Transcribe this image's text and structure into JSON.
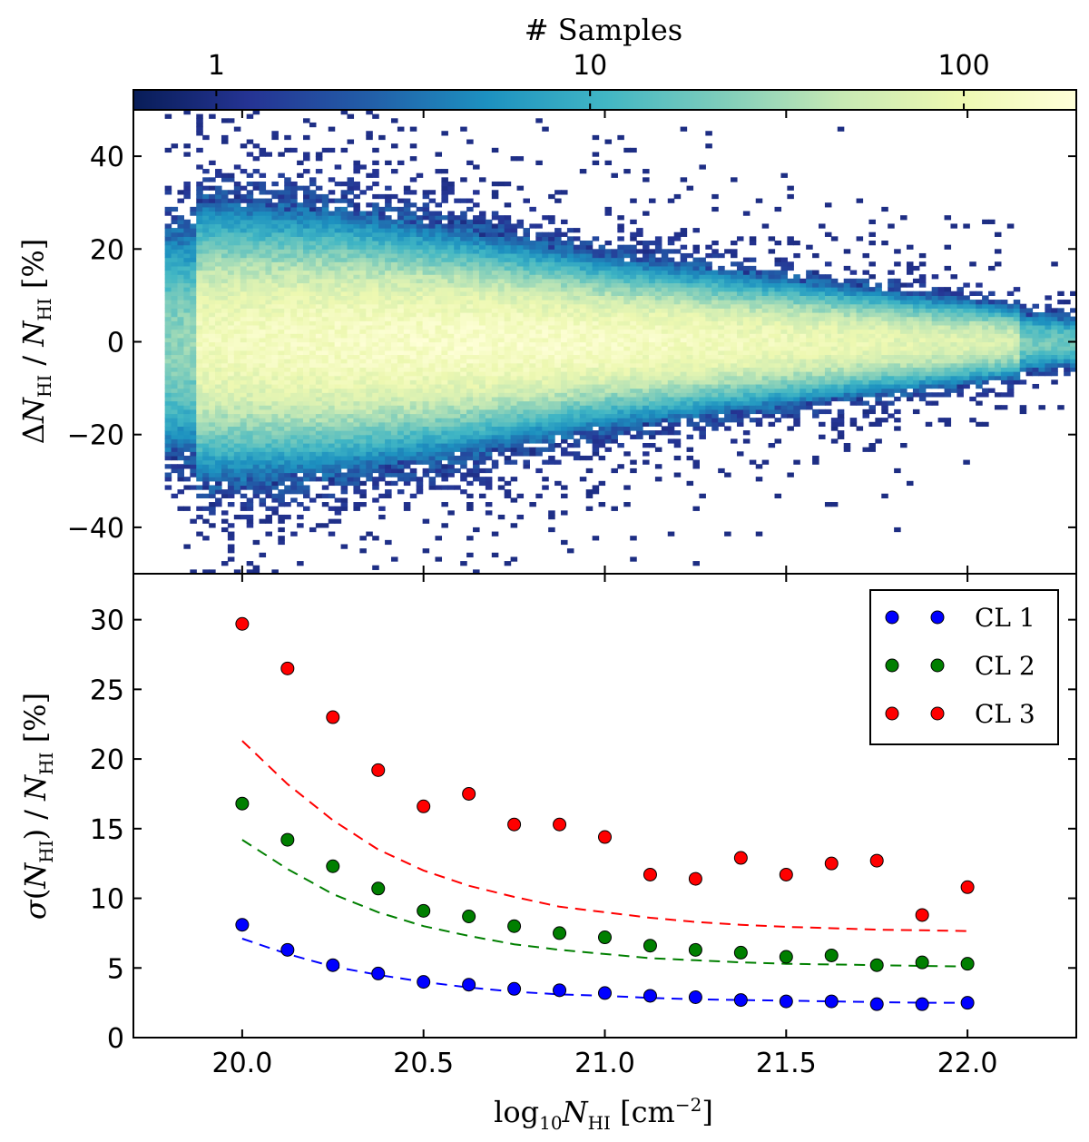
{
  "chart_data": [
    {
      "type": "heatmap",
      "xlabel": "log10 N_HI [cm^-2]",
      "ylabel": "ΔN_HI / N_HI [%]",
      "xlim": [
        19.7,
        22.3
      ],
      "ylim": [
        -50,
        50
      ],
      "yticks": [
        -40,
        -20,
        0,
        20,
        40
      ],
      "ytick_labels": [
        "−40",
        "−20",
        "0",
        "20",
        "40"
      ],
      "colorbar": {
        "label": "# Samples",
        "scale": "log",
        "range": [
          0.6,
          200
        ],
        "ticks": [
          1,
          10,
          100
        ],
        "tick_labels": [
          "1",
          "10",
          "100"
        ],
        "colormap": [
          "#081d58",
          "#253494",
          "#225ea8",
          "#1d91c0",
          "#41b6c4",
          "#7fcdbb",
          "#c7e9b4",
          "#edf8b1",
          "#ffffd9"
        ]
      },
      "density_model": {
        "description_points": [
          {
            "x": 19.85,
            "spread": 11
          },
          {
            "x": 20.25,
            "spread": 10
          },
          {
            "x": 20.6,
            "spread": 8.5
          },
          {
            "x": 21.0,
            "spread": 6.5
          },
          {
            "x": 21.5,
            "spread": 5
          },
          {
            "x": 22.0,
            "spread": 3.5
          },
          {
            "x": 22.3,
            "spread": 2.5
          }
        ],
        "peak_x": 20.65,
        "peak_count": 150
      }
    },
    {
      "type": "scatter",
      "xlabel": "log10 N_HI [cm^-2]",
      "ylabel": "σ(N_HI) / N_HI [%]",
      "xlim": [
        19.7,
        22.3
      ],
      "ylim": [
        0,
        33.3
      ],
      "xticks": [
        20.0,
        20.5,
        21.0,
        21.5,
        22.0
      ],
      "xtick_labels": [
        "20.0",
        "20.5",
        "21.0",
        "21.5",
        "22.0"
      ],
      "yticks": [
        0,
        5,
        10,
        15,
        20,
        25,
        30
      ],
      "ytick_labels": [
        "0",
        "5",
        "10",
        "15",
        "20",
        "25",
        "30"
      ],
      "legend_position": "top-right",
      "x": [
        20.0,
        20.125,
        20.25,
        20.375,
        20.5,
        20.625,
        20.75,
        20.875,
        21.0,
        21.125,
        21.25,
        21.375,
        21.5,
        21.625,
        21.75,
        21.875,
        22.0
      ],
      "series": [
        {
          "name": "CL 1",
          "color": "#0000ff",
          "values": [
            8.1,
            6.3,
            5.2,
            4.6,
            4.0,
            3.8,
            3.5,
            3.4,
            3.2,
            3.0,
            2.9,
            2.7,
            2.6,
            2.6,
            2.4,
            2.4,
            2.5
          ],
          "fit": [
            7.1,
            6.0,
            5.1,
            4.5,
            4.0,
            3.6,
            3.3,
            3.1,
            3.0,
            2.85,
            2.75,
            2.7,
            2.65,
            2.6,
            2.55,
            2.5,
            2.5
          ]
        },
        {
          "name": "CL 2",
          "color": "#007f00",
          "values": [
            16.8,
            14.2,
            12.3,
            10.7,
            9.1,
            8.7,
            8.0,
            7.5,
            7.2,
            6.6,
            6.3,
            6.1,
            5.8,
            5.9,
            5.2,
            5.4,
            5.3
          ],
          "fit": [
            14.2,
            12.1,
            10.3,
            9.0,
            8.0,
            7.3,
            6.7,
            6.3,
            6.0,
            5.7,
            5.55,
            5.4,
            5.3,
            5.25,
            5.2,
            5.15,
            5.1
          ]
        },
        {
          "name": "CL 3",
          "color": "#ff0000",
          "values": [
            29.7,
            26.5,
            23.0,
            19.2,
            16.6,
            17.5,
            15.3,
            15.3,
            14.4,
            11.7,
            11.4,
            12.9,
            11.7,
            12.5,
            12.7,
            8.8,
            10.8
          ],
          "fit": [
            21.3,
            18.2,
            15.6,
            13.5,
            12.0,
            10.9,
            10.1,
            9.4,
            9.0,
            8.6,
            8.3,
            8.1,
            7.95,
            7.85,
            7.75,
            7.7,
            7.65
          ]
        }
      ]
    }
  ]
}
